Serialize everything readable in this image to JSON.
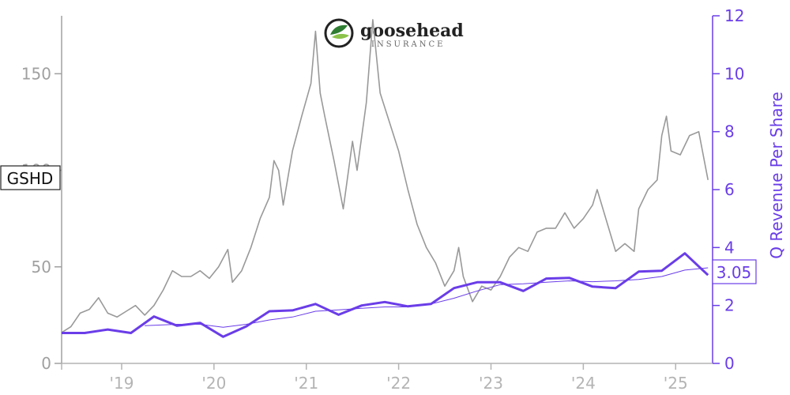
{
  "logo": {
    "word": "goosehead",
    "sub": "INSURANCE",
    "colors": {
      "ring": "#222222",
      "leaf_dark": "#2f7d32",
      "leaf_light": "#8bc34a"
    }
  },
  "ticker_label": "GSHD",
  "last_value_label": "3.05",
  "colors": {
    "price": "#999999",
    "revenue": "#6a3de8",
    "left_axis": "#a0a0a0",
    "x_axis": "#b4b4b4"
  },
  "chart_data": {
    "type": "line",
    "xlabel": "",
    "ylabel_left": "",
    "ylabel_right": "Q Revenue Per Share",
    "x_range": [
      2018.35,
      2025.4
    ],
    "x_ticks": [
      {
        "value": 2019,
        "label": "'19"
      },
      {
        "value": 2020,
        "label": "'20"
      },
      {
        "value": 2021,
        "label": "'21"
      },
      {
        "value": 2022,
        "label": "'22"
      },
      {
        "value": 2023,
        "label": "'23"
      },
      {
        "value": 2024,
        "label": "'24"
      },
      {
        "value": 2025,
        "label": "'25"
      }
    ],
    "ylim_left": [
      0,
      180
    ],
    "y_ticks_left": [
      0,
      50,
      100,
      150
    ],
    "ylim_right": [
      0,
      12
    ],
    "y_ticks_right": [
      0,
      2,
      4,
      6,
      8,
      10,
      12
    ],
    "series": [
      {
        "axis": "left",
        "style": "price",
        "points": [
          [
            2018.35,
            16
          ],
          [
            2018.45,
            19
          ],
          [
            2018.55,
            26
          ],
          [
            2018.65,
            28
          ],
          [
            2018.75,
            34
          ],
          [
            2018.85,
            26
          ],
          [
            2018.95,
            24
          ],
          [
            2019.05,
            27
          ],
          [
            2019.15,
            30
          ],
          [
            2019.25,
            25
          ],
          [
            2019.35,
            30
          ],
          [
            2019.45,
            38
          ],
          [
            2019.55,
            48
          ],
          [
            2019.65,
            45
          ],
          [
            2019.75,
            45
          ],
          [
            2019.85,
            48
          ],
          [
            2019.95,
            44
          ],
          [
            2020.05,
            50
          ],
          [
            2020.15,
            59
          ],
          [
            2020.2,
            42
          ],
          [
            2020.3,
            48
          ],
          [
            2020.4,
            60
          ],
          [
            2020.5,
            75
          ],
          [
            2020.6,
            86
          ],
          [
            2020.65,
            105
          ],
          [
            2020.7,
            100
          ],
          [
            2020.75,
            82
          ],
          [
            2020.85,
            110
          ],
          [
            2020.95,
            128
          ],
          [
            2021.05,
            145
          ],
          [
            2021.1,
            172
          ],
          [
            2021.15,
            140
          ],
          [
            2021.2,
            128
          ],
          [
            2021.3,
            105
          ],
          [
            2021.4,
            80
          ],
          [
            2021.5,
            115
          ],
          [
            2021.55,
            100
          ],
          [
            2021.65,
            135
          ],
          [
            2021.72,
            178
          ],
          [
            2021.8,
            140
          ],
          [
            2021.9,
            125
          ],
          [
            2022.0,
            110
          ],
          [
            2022.1,
            90
          ],
          [
            2022.2,
            72
          ],
          [
            2022.3,
            60
          ],
          [
            2022.4,
            52
          ],
          [
            2022.5,
            40
          ],
          [
            2022.6,
            48
          ],
          [
            2022.65,
            60
          ],
          [
            2022.7,
            45
          ],
          [
            2022.8,
            32
          ],
          [
            2022.9,
            40
          ],
          [
            2023.0,
            38
          ],
          [
            2023.1,
            45
          ],
          [
            2023.2,
            55
          ],
          [
            2023.3,
            60
          ],
          [
            2023.4,
            58
          ],
          [
            2023.5,
            68
          ],
          [
            2023.6,
            70
          ],
          [
            2023.7,
            70
          ],
          [
            2023.8,
            78
          ],
          [
            2023.9,
            70
          ],
          [
            2024.0,
            75
          ],
          [
            2024.1,
            82
          ],
          [
            2024.15,
            90
          ],
          [
            2024.25,
            74
          ],
          [
            2024.35,
            58
          ],
          [
            2024.45,
            62
          ],
          [
            2024.55,
            58
          ],
          [
            2024.6,
            80
          ],
          [
            2024.7,
            90
          ],
          [
            2024.8,
            95
          ],
          [
            2024.85,
            118
          ],
          [
            2024.9,
            128
          ],
          [
            2024.95,
            110
          ],
          [
            2025.05,
            108
          ],
          [
            2025.15,
            118
          ],
          [
            2025.25,
            120
          ],
          [
            2025.35,
            95
          ]
        ]
      },
      {
        "axis": "right",
        "style": "revenue_quarterly",
        "points": [
          [
            2018.35,
            1.05
          ],
          [
            2018.6,
            1.05
          ],
          [
            2018.85,
            1.17
          ],
          [
            2019.1,
            1.05
          ],
          [
            2019.35,
            1.62
          ],
          [
            2019.6,
            1.3
          ],
          [
            2019.85,
            1.4
          ],
          [
            2020.1,
            0.92
          ],
          [
            2020.35,
            1.28
          ],
          [
            2020.6,
            1.8
          ],
          [
            2020.85,
            1.83
          ],
          [
            2021.1,
            2.05
          ],
          [
            2021.35,
            1.68
          ],
          [
            2021.6,
            2.0
          ],
          [
            2021.85,
            2.12
          ],
          [
            2022.1,
            1.97
          ],
          [
            2022.35,
            2.05
          ],
          [
            2022.6,
            2.6
          ],
          [
            2022.85,
            2.8
          ],
          [
            2023.1,
            2.8
          ],
          [
            2023.35,
            2.5
          ],
          [
            2023.6,
            2.93
          ],
          [
            2023.85,
            2.95
          ],
          [
            2024.1,
            2.65
          ],
          [
            2024.35,
            2.6
          ],
          [
            2024.6,
            3.17
          ],
          [
            2024.85,
            3.2
          ],
          [
            2025.1,
            3.8
          ],
          [
            2025.35,
            3.05
          ]
        ]
      },
      {
        "axis": "right",
        "style": "revenue_trend",
        "points": [
          [
            2019.25,
            1.3
          ],
          [
            2019.6,
            1.35
          ],
          [
            2019.85,
            1.35
          ],
          [
            2020.1,
            1.25
          ],
          [
            2020.35,
            1.35
          ],
          [
            2020.6,
            1.5
          ],
          [
            2020.85,
            1.6
          ],
          [
            2021.1,
            1.8
          ],
          [
            2021.35,
            1.85
          ],
          [
            2021.6,
            1.9
          ],
          [
            2021.85,
            1.95
          ],
          [
            2022.1,
            1.95
          ],
          [
            2022.35,
            2.05
          ],
          [
            2022.6,
            2.25
          ],
          [
            2022.85,
            2.5
          ],
          [
            2023.1,
            2.72
          ],
          [
            2023.35,
            2.75
          ],
          [
            2023.6,
            2.8
          ],
          [
            2023.85,
            2.85
          ],
          [
            2024.1,
            2.82
          ],
          [
            2024.35,
            2.85
          ],
          [
            2024.6,
            2.9
          ],
          [
            2024.85,
            3.0
          ],
          [
            2025.1,
            3.22
          ],
          [
            2025.35,
            3.3
          ]
        ]
      }
    ]
  }
}
